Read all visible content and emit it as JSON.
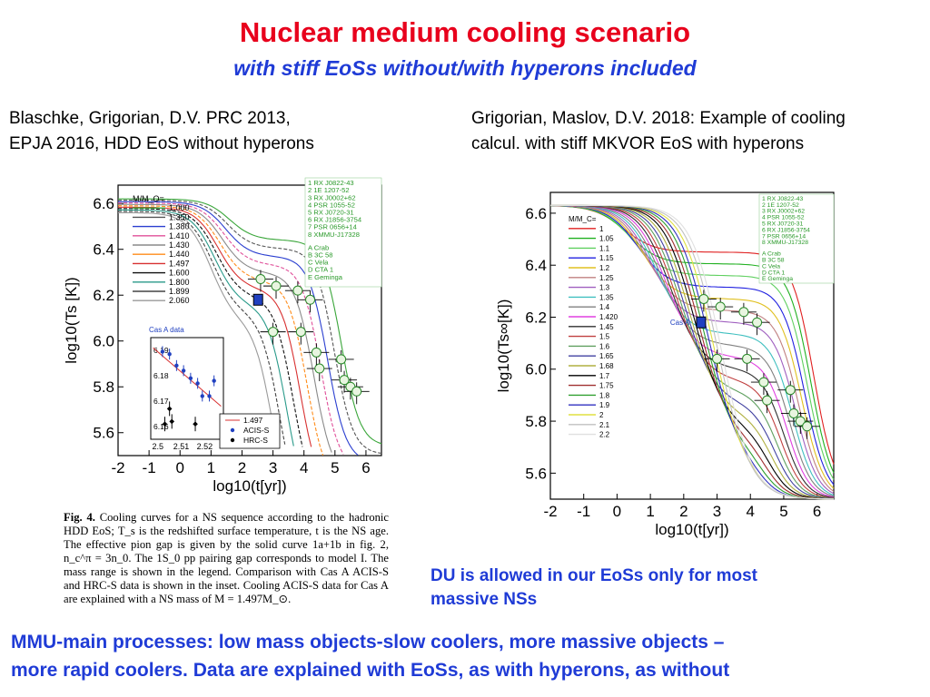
{
  "slide": {
    "title": "Nuclear medium cooling scenario",
    "subtitle": "with stiff EoSs without/with hyperons included",
    "left_ref_line1": "Blaschke, Grigorian, D.V. PRC 2013,",
    "left_ref_line2": "EPJA 2016, HDD EoS without  hyperons",
    "right_ref_line1": "Grigorian, Maslov, D.V. 2018: Example of cooling",
    "right_ref_line2": "calcul. with stiff MKVOR EoS with hyperons",
    "du_note_line1": "DU is allowed in our EoSs only for most",
    "du_note_line2": "massive NSs",
    "bottom_line1": "MMU-main processes: low mass objects-slow coolers,  more massive objects –",
    "bottom_line2": "more rapid coolers. Data are explained with EoSs, as with hyperons, as without"
  },
  "caption": {
    "label": "Fig. 4.",
    "text": "Cooling curves for a NS sequence according to the hadronic HDD EoS; T_s is the redshifted surface temperature, t is the NS age. The effective pion gap is given by the solid curve 1a+1b in fig. 2, n_c^π = 3n_0. The 1S_0 pp pairing gap corresponds to model I. The mass range is shown in the legend. Comparison with Cas A ACIS-S and HRC-S data is shown in the inset. Cooling ACIS-S data for Cas A are explained with a NS mass of M = 1.497M_⊙."
  },
  "chart_data": [
    {
      "type": "line",
      "title": "",
      "xlabel": "log10(t[yr])",
      "ylabel": "log10(Ts [K])",
      "xlim": [
        -2,
        6.5
      ],
      "ylim": [
        5.5,
        6.68
      ],
      "xticks": [
        "-2",
        "-1",
        "0",
        "1",
        "2",
        "3",
        "4",
        "5",
        "6"
      ],
      "yticks": [
        "5.6",
        "5.8",
        "6.0",
        "6.2",
        "6.4",
        "6.6"
      ],
      "legend_title": "M/M_O=",
      "series": [
        {
          "name": "1.000",
          "color": "#3aa63a"
        },
        {
          "name": "1.350",
          "color": "#555555"
        },
        {
          "name": "1.380",
          "color": "#2b3fd0"
        },
        {
          "name": "1.410",
          "color": "#e0509a"
        },
        {
          "name": "1.430",
          "color": "#8a8a8a"
        },
        {
          "name": "1.440",
          "color": "#ff8c1a"
        },
        {
          "name": "1.497",
          "color": "#d83030"
        },
        {
          "name": "1.600",
          "color": "#111111"
        },
        {
          "name": "1.800",
          "color": "#2a9a8a"
        },
        {
          "name": "1.899",
          "color": "#444444"
        },
        {
          "name": "2.060",
          "color": "#9a9a9a"
        }
      ],
      "source_list": [
        "1 RX J0822-43",
        "2 1E 1207-52",
        "3 RX J0002+62",
        "4 PSR 1055-52",
        "5 RX J0720-31",
        "6 RX J1856-3754",
        "7 PSR 0656+14",
        "8 XMMU-J17328",
        "A Crab",
        "B 3C 58",
        "C Vela",
        "D CTA 1",
        "E Geminga"
      ],
      "inset": {
        "title": "Cas A data",
        "xticks": [
          "2.5",
          "2.51",
          "2.52"
        ],
        "yticks": [
          "6.16",
          "6.17",
          "6.18",
          "6.19"
        ],
        "legend": [
          "1.497",
          "ACIS-S",
          "HRC-S"
        ],
        "acis_s": [
          [
            2.502,
            6.1895
          ],
          [
            2.505,
            6.1885
          ],
          [
            2.508,
            6.184
          ],
          [
            2.511,
            6.182
          ],
          [
            2.514,
            6.179
          ],
          [
            2.517,
            6.177
          ],
          [
            2.519,
            6.172
          ],
          [
            2.522,
            6.172
          ],
          [
            2.524,
            6.178
          ]
        ],
        "hrc_s": [
          [
            2.503,
            6.161
          ],
          [
            2.505,
            6.167
          ],
          [
            2.506,
            6.162
          ],
          [
            2.516,
            6.161
          ]
        ]
      }
    },
    {
      "type": "line",
      "title": "",
      "xlabel": "log10(t[yr])",
      "ylabel": "log10(Ts∞[K])",
      "xlim": [
        -2,
        6.5
      ],
      "ylim": [
        5.5,
        6.68
      ],
      "xticks": [
        "-2",
        "-1",
        "0",
        "1",
        "2",
        "3",
        "4",
        "5",
        "6"
      ],
      "yticks": [
        "5.6",
        "5.8",
        "6.0",
        "6.2",
        "6.4",
        "6.6"
      ],
      "legend_title": "M/M_C=",
      "series": [
        {
          "name": "1",
          "color": "#e02020"
        },
        {
          "name": "1.05",
          "color": "#20b020"
        },
        {
          "name": "1.1",
          "color": "#60d060"
        },
        {
          "name": "1.15",
          "color": "#2020e0"
        },
        {
          "name": "1.2",
          "color": "#e0c020"
        },
        {
          "name": "1.25",
          "color": "#c08080"
        },
        {
          "name": "1.3",
          "color": "#a060c0"
        },
        {
          "name": "1.35",
          "color": "#40c0c0"
        },
        {
          "name": "1.4",
          "color": "#808080"
        },
        {
          "name": "1.420",
          "color": "#e040e0"
        },
        {
          "name": "1.45",
          "color": "#303030"
        },
        {
          "name": "1.5",
          "color": "#c04040"
        },
        {
          "name": "1.6",
          "color": "#60a060"
        },
        {
          "name": "1.65",
          "color": "#4040a0"
        },
        {
          "name": "1.68",
          "color": "#b0b040"
        },
        {
          "name": "1.7",
          "color": "#000000"
        },
        {
          "name": "1.75",
          "color": "#a03030"
        },
        {
          "name": "1.8",
          "color": "#30a030"
        },
        {
          "name": "1.9",
          "color": "#3030c0"
        },
        {
          "name": "2",
          "color": "#e0e040"
        },
        {
          "name": "2.1",
          "color": "#c0c0c0"
        },
        {
          "name": "2.2",
          "color": "#e0e0e0"
        }
      ],
      "source_list": [
        "1 RX J0822-43",
        "2 1E 1207-52",
        "3 RX J0002+62",
        "4 PSR 1055-52",
        "5 RX J0720-31",
        "6 RX J1856-3754",
        "7 PSR 0656+14",
        "8 XMMU-J17328",
        "A Crab",
        "B 3C 58",
        "C Vela",
        "D CTA 1",
        "E Geminga"
      ],
      "cas_a_label": "Cas A"
    }
  ]
}
